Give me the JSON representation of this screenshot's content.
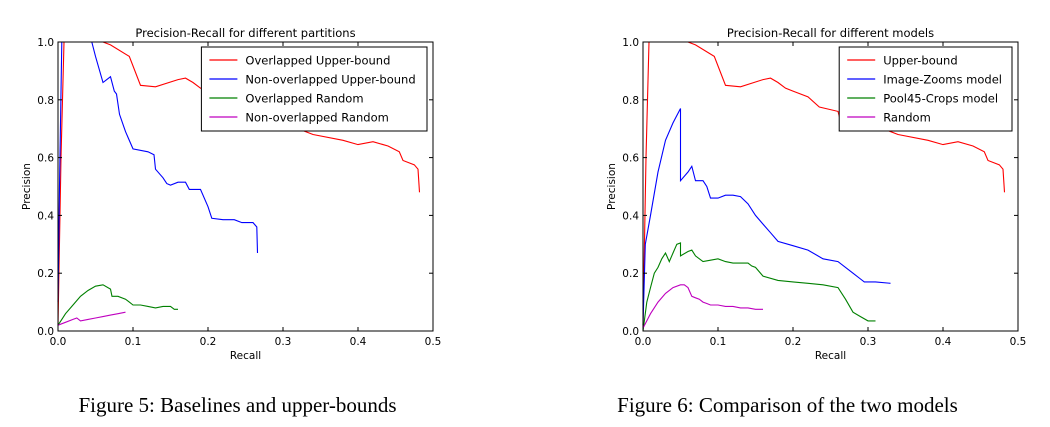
{
  "figures": [
    {
      "caption": "Figure 5: Baselines and upper-bounds"
    },
    {
      "caption": "Figure 6: Comparison of the two models"
    }
  ],
  "chart_data": [
    {
      "type": "line",
      "title": "Precision-Recall for different partitions",
      "xlabel": "Recall",
      "ylabel": "Precision",
      "xlim": [
        0.0,
        0.5
      ],
      "ylim": [
        0.0,
        1.0
      ],
      "xticks": [
        "0.0",
        "0.1",
        "0.2",
        "0.3",
        "0.4",
        "0.5"
      ],
      "yticks": [
        "0.0",
        "0.2",
        "0.4",
        "0.6",
        "0.8",
        "1.0"
      ],
      "grid": false,
      "legend_position": "top-right",
      "series": [
        {
          "name": "Overlapped Upper-bound",
          "color": "#ff0000",
          "points": [
            [
              0.0,
              0.02
            ],
            [
              0.004,
              0.6
            ],
            [
              0.008,
              1.0
            ],
            [
              0.06,
              1.0
            ],
            [
              0.07,
              0.99
            ],
            [
              0.095,
              0.95
            ],
            [
              0.11,
              0.85
            ],
            [
              0.13,
              0.845
            ],
            [
              0.16,
              0.87
            ],
            [
              0.17,
              0.875
            ],
            [
              0.18,
              0.86
            ],
            [
              0.19,
              0.84
            ],
            [
              0.2,
              0.83
            ],
            [
              0.22,
              0.81
            ],
            [
              0.235,
              0.775
            ],
            [
              0.26,
              0.76
            ],
            [
              0.265,
              0.71
            ],
            [
              0.3,
              0.715
            ],
            [
              0.32,
              0.7
            ],
            [
              0.34,
              0.68
            ],
            [
              0.38,
              0.66
            ],
            [
              0.4,
              0.645
            ],
            [
              0.42,
              0.655
            ],
            [
              0.44,
              0.64
            ],
            [
              0.455,
              0.62
            ],
            [
              0.46,
              0.59
            ],
            [
              0.475,
              0.575
            ],
            [
              0.48,
              0.56
            ],
            [
              0.482,
              0.48
            ]
          ]
        },
        {
          "name": "Non-overlapped Upper-bound",
          "color": "#0000ff",
          "points": [
            [
              0.0,
              0.1
            ],
            [
              0.002,
              0.5
            ],
            [
              0.005,
              1.0
            ],
            [
              0.045,
              1.0
            ],
            [
              0.05,
              0.95
            ],
            [
              0.06,
              0.86
            ],
            [
              0.065,
              0.87
            ],
            [
              0.07,
              0.88
            ],
            [
              0.075,
              0.83
            ],
            [
              0.078,
              0.82
            ],
            [
              0.082,
              0.75
            ],
            [
              0.09,
              0.69
            ],
            [
              0.1,
              0.63
            ],
            [
              0.12,
              0.62
            ],
            [
              0.128,
              0.61
            ],
            [
              0.13,
              0.56
            ],
            [
              0.14,
              0.53
            ],
            [
              0.145,
              0.51
            ],
            [
              0.15,
              0.505
            ],
            [
              0.16,
              0.515
            ],
            [
              0.17,
              0.515
            ],
            [
              0.175,
              0.49
            ],
            [
              0.18,
              0.49
            ],
            [
              0.19,
              0.49
            ],
            [
              0.2,
              0.43
            ],
            [
              0.205,
              0.39
            ],
            [
              0.22,
              0.385
            ],
            [
              0.235,
              0.385
            ],
            [
              0.245,
              0.375
            ],
            [
              0.26,
              0.375
            ],
            [
              0.265,
              0.36
            ],
            [
              0.266,
              0.27
            ]
          ]
        },
        {
          "name": "Overlapped Random",
          "color": "#008000",
          "points": [
            [
              0.0,
              0.02
            ],
            [
              0.005,
              0.04
            ],
            [
              0.01,
              0.06
            ],
            [
              0.02,
              0.09
            ],
            [
              0.03,
              0.12
            ],
            [
              0.04,
              0.14
            ],
            [
              0.05,
              0.155
            ],
            [
              0.06,
              0.16
            ],
            [
              0.07,
              0.145
            ],
            [
              0.072,
              0.12
            ],
            [
              0.08,
              0.12
            ],
            [
              0.09,
              0.11
            ],
            [
              0.095,
              0.1
            ],
            [
              0.1,
              0.09
            ],
            [
              0.11,
              0.09
            ],
            [
              0.12,
              0.085
            ],
            [
              0.13,
              0.08
            ],
            [
              0.14,
              0.085
            ],
            [
              0.15,
              0.085
            ],
            [
              0.155,
              0.075
            ],
            [
              0.16,
              0.075
            ]
          ]
        },
        {
          "name": "Non-overlapped Random",
          "color": "#bf00bf",
          "points": [
            [
              0.0,
              0.02
            ],
            [
              0.01,
              0.03
            ],
            [
              0.02,
              0.04
            ],
            [
              0.025,
              0.045
            ],
            [
              0.03,
              0.035
            ],
            [
              0.04,
              0.04
            ],
            [
              0.05,
              0.045
            ],
            [
              0.06,
              0.05
            ],
            [
              0.07,
              0.055
            ],
            [
              0.08,
              0.06
            ],
            [
              0.09,
              0.065
            ]
          ]
        }
      ]
    },
    {
      "type": "line",
      "title": "Precision-Recall for different models",
      "xlabel": "Recall",
      "ylabel": "Precision",
      "xlim": [
        0.0,
        0.5
      ],
      "ylim": [
        0.0,
        1.0
      ],
      "xticks": [
        "0.0",
        "0.1",
        "0.2",
        "0.3",
        "0.4",
        "0.5"
      ],
      "yticks": [
        "0.0",
        "0.2",
        "0.4",
        "0.6",
        "0.8",
        "1.0"
      ],
      "grid": false,
      "legend_position": "top-right",
      "series": [
        {
          "name": "Upper-bound",
          "color": "#ff0000",
          "points": [
            [
              0.0,
              0.02
            ],
            [
              0.004,
              0.6
            ],
            [
              0.008,
              1.0
            ],
            [
              0.06,
              1.0
            ],
            [
              0.07,
              0.99
            ],
            [
              0.095,
              0.95
            ],
            [
              0.11,
              0.85
            ],
            [
              0.13,
              0.845
            ],
            [
              0.16,
              0.87
            ],
            [
              0.17,
              0.875
            ],
            [
              0.18,
              0.86
            ],
            [
              0.19,
              0.84
            ],
            [
              0.2,
              0.83
            ],
            [
              0.22,
              0.81
            ],
            [
              0.235,
              0.775
            ],
            [
              0.26,
              0.76
            ],
            [
              0.265,
              0.71
            ],
            [
              0.3,
              0.715
            ],
            [
              0.32,
              0.7
            ],
            [
              0.34,
              0.68
            ],
            [
              0.38,
              0.66
            ],
            [
              0.4,
              0.645
            ],
            [
              0.42,
              0.655
            ],
            [
              0.44,
              0.64
            ],
            [
              0.455,
              0.62
            ],
            [
              0.46,
              0.59
            ],
            [
              0.475,
              0.575
            ],
            [
              0.48,
              0.56
            ],
            [
              0.482,
              0.48
            ]
          ]
        },
        {
          "name": "Image-Zooms model",
          "color": "#0000ff",
          "points": [
            [
              0.0,
              0.02
            ],
            [
              0.003,
              0.3
            ],
            [
              0.01,
              0.4
            ],
            [
              0.02,
              0.55
            ],
            [
              0.03,
              0.66
            ],
            [
              0.04,
              0.72
            ],
            [
              0.05,
              0.77
            ],
            [
              0.05,
              0.52
            ],
            [
              0.06,
              0.55
            ],
            [
              0.065,
              0.57
            ],
            [
              0.07,
              0.52
            ],
            [
              0.08,
              0.52
            ],
            [
              0.085,
              0.5
            ],
            [
              0.09,
              0.46
            ],
            [
              0.1,
              0.46
            ],
            [
              0.11,
              0.47
            ],
            [
              0.12,
              0.47
            ],
            [
              0.13,
              0.465
            ],
            [
              0.14,
              0.44
            ],
            [
              0.15,
              0.4
            ],
            [
              0.16,
              0.37
            ],
            [
              0.17,
              0.34
            ],
            [
              0.18,
              0.31
            ],
            [
              0.2,
              0.295
            ],
            [
              0.22,
              0.28
            ],
            [
              0.24,
              0.25
            ],
            [
              0.26,
              0.24
            ],
            [
              0.28,
              0.2
            ],
            [
              0.29,
              0.18
            ],
            [
              0.295,
              0.17
            ],
            [
              0.31,
              0.17
            ],
            [
              0.33,
              0.165
            ]
          ]
        },
        {
          "name": "Pool45-Crops model",
          "color": "#008000",
          "points": [
            [
              0.0,
              0.0
            ],
            [
              0.005,
              0.1
            ],
            [
              0.01,
              0.15
            ],
            [
              0.015,
              0.2
            ],
            [
              0.02,
              0.22
            ],
            [
              0.025,
              0.25
            ],
            [
              0.03,
              0.27
            ],
            [
              0.035,
              0.24
            ],
            [
              0.04,
              0.27
            ],
            [
              0.045,
              0.3
            ],
            [
              0.05,
              0.305
            ],
            [
              0.05,
              0.26
            ],
            [
              0.06,
              0.275
            ],
            [
              0.065,
              0.28
            ],
            [
              0.07,
              0.26
            ],
            [
              0.08,
              0.24
            ],
            [
              0.09,
              0.245
            ],
            [
              0.1,
              0.25
            ],
            [
              0.11,
              0.24
            ],
            [
              0.12,
              0.235
            ],
            [
              0.13,
              0.235
            ],
            [
              0.14,
              0.235
            ],
            [
              0.145,
              0.225
            ],
            [
              0.15,
              0.22
            ],
            [
              0.16,
              0.19
            ],
            [
              0.18,
              0.175
            ],
            [
              0.2,
              0.17
            ],
            [
              0.22,
              0.165
            ],
            [
              0.24,
              0.16
            ],
            [
              0.26,
              0.15
            ],
            [
              0.27,
              0.11
            ],
            [
              0.28,
              0.065
            ],
            [
              0.29,
              0.05
            ],
            [
              0.3,
              0.035
            ],
            [
              0.31,
              0.035
            ]
          ]
        },
        {
          "name": "Random",
          "color": "#bf00bf",
          "points": [
            [
              0.0,
              0.01
            ],
            [
              0.01,
              0.06
            ],
            [
              0.02,
              0.1
            ],
            [
              0.03,
              0.13
            ],
            [
              0.04,
              0.15
            ],
            [
              0.05,
              0.16
            ],
            [
              0.055,
              0.16
            ],
            [
              0.06,
              0.15
            ],
            [
              0.065,
              0.12
            ],
            [
              0.07,
              0.115
            ],
            [
              0.075,
              0.11
            ],
            [
              0.08,
              0.1
            ],
            [
              0.085,
              0.095
            ],
            [
              0.09,
              0.09
            ],
            [
              0.1,
              0.09
            ],
            [
              0.11,
              0.085
            ],
            [
              0.12,
              0.085
            ],
            [
              0.13,
              0.08
            ],
            [
              0.14,
              0.08
            ],
            [
              0.15,
              0.075
            ],
            [
              0.16,
              0.075
            ]
          ]
        }
      ]
    }
  ]
}
